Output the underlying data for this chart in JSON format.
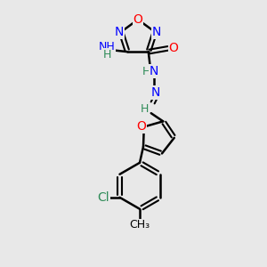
{
  "bg_color": "#e8e8e8",
  "bond_color": "#000000",
  "bond_width": 1.8,
  "atom_colors": {
    "N": "#0000ff",
    "O": "#ff0000",
    "C": "#000000",
    "H": "#2e8b57",
    "Cl": "#2e8b57",
    "CH3": "#2e8b57"
  },
  "font_size": 9,
  "fig_size": [
    3.0,
    3.0
  ],
  "dpi": 100
}
